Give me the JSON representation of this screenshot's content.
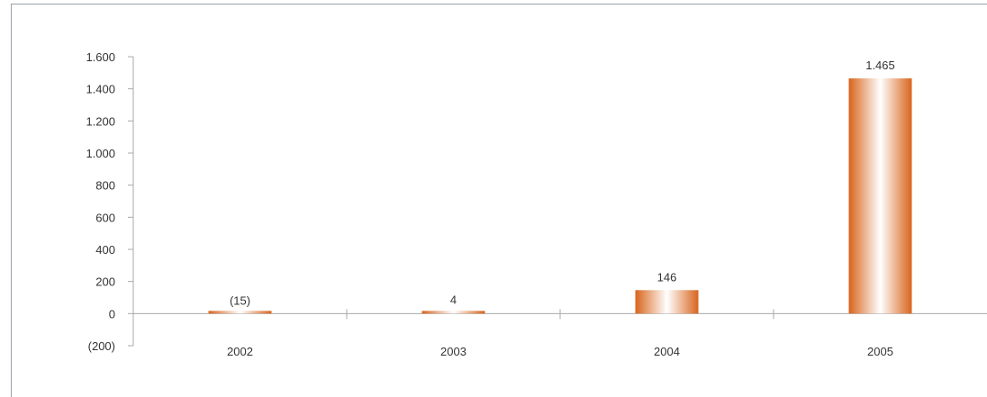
{
  "chart_data": {
    "type": "bar",
    "title": "",
    "xlabel": "",
    "ylabel": "",
    "categories": [
      "2002",
      "2003",
      "2004",
      "2005"
    ],
    "values": [
      -15,
      4,
      146,
      1465
    ],
    "data_labels": [
      "(15)",
      "4",
      "146",
      "1.465"
    ],
    "ylim": [
      -200,
      1600
    ],
    "yticks": [
      -200,
      0,
      200,
      400,
      600,
      800,
      1000,
      1200,
      1400,
      1600
    ],
    "ytick_labels": [
      "(200)",
      "0",
      "200",
      "400",
      "600",
      "800",
      "1.000",
      "1.200",
      "1.400",
      "1.600"
    ],
    "grid": false,
    "legend": "none",
    "bar_colors": {
      "edge": "#d8641c",
      "center": "#ffffff"
    },
    "axis_color": "#a9a9a9"
  }
}
